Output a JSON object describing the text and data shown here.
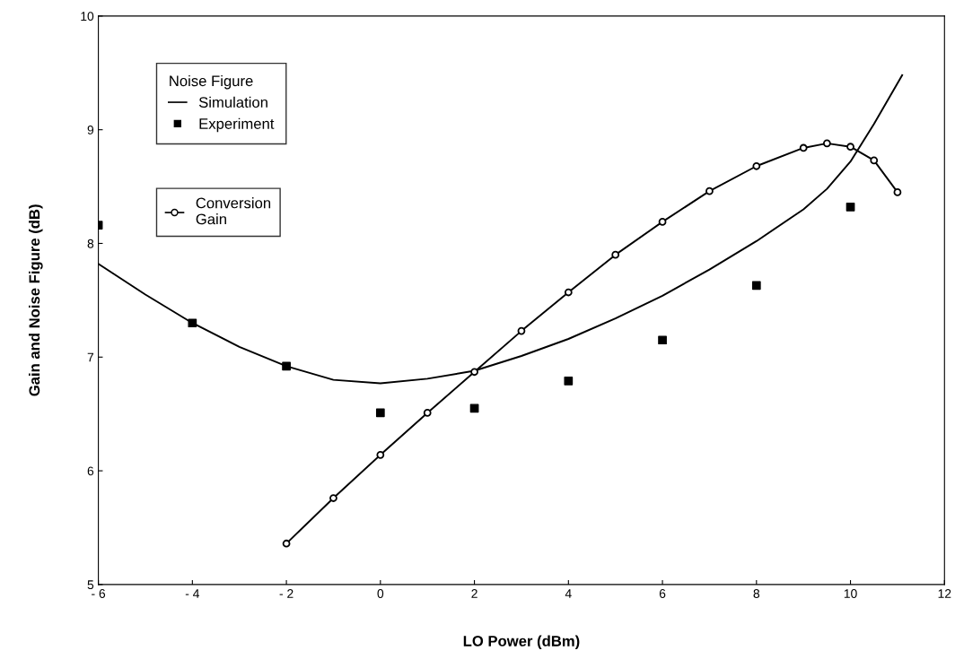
{
  "chart_data": {
    "type": "line",
    "xlabel": "LO Power (dBm)",
    "ylabel": "Gain and Noise Figure (dB)",
    "legend_title": "Noise Figure",
    "xlim": [
      -6,
      12
    ],
    "ylim": [
      5,
      10
    ],
    "xticks": [
      {
        "value": -6,
        "label": "- 6"
      },
      {
        "value": -4,
        "label": "- 4"
      },
      {
        "value": -2,
        "label": "- 2"
      },
      0,
      2,
      4,
      6,
      8,
      10,
      12
    ],
    "yticks": [
      5,
      6,
      7,
      8,
      9,
      10
    ],
    "grid": false,
    "legend": "top left",
    "series": [
      {
        "name": "Simulation",
        "marker": "none",
        "color": "#000000",
        "x": [
          -6,
          -5,
          -4,
          -3,
          -2,
          -1,
          0,
          1,
          2,
          3,
          4,
          5,
          6,
          7,
          8,
          9,
          9.5,
          10,
          10.5,
          11.1
        ],
        "values": [
          7.82,
          7.55,
          7.3,
          7.09,
          6.92,
          6.8,
          6.77,
          6.81,
          6.88,
          7.01,
          7.16,
          7.34,
          7.54,
          7.77,
          8.02,
          8.3,
          8.48,
          8.72,
          9.05,
          9.48
        ]
      },
      {
        "name": "Experiment",
        "type": "scatter",
        "marker": "square",
        "color": "#000000",
        "x": [
          -6,
          -4,
          -2,
          0,
          2,
          4,
          6,
          8,
          10
        ],
        "values": [
          8.16,
          7.3,
          6.92,
          6.51,
          6.55,
          6.79,
          7.15,
          7.63,
          8.32
        ]
      },
      {
        "name": "Conversion\nGain",
        "marker": "circle",
        "color": "#000000",
        "x": [
          -2,
          -1,
          0,
          1,
          2,
          3,
          4,
          5,
          6,
          7,
          8,
          9,
          9.5,
          10,
          10.5,
          11
        ],
        "values": [
          5.36,
          5.76,
          6.14,
          6.51,
          6.87,
          7.23,
          7.57,
          7.9,
          8.19,
          8.46,
          8.68,
          8.84,
          8.88,
          8.85,
          8.73,
          8.45
        ]
      }
    ]
  }
}
